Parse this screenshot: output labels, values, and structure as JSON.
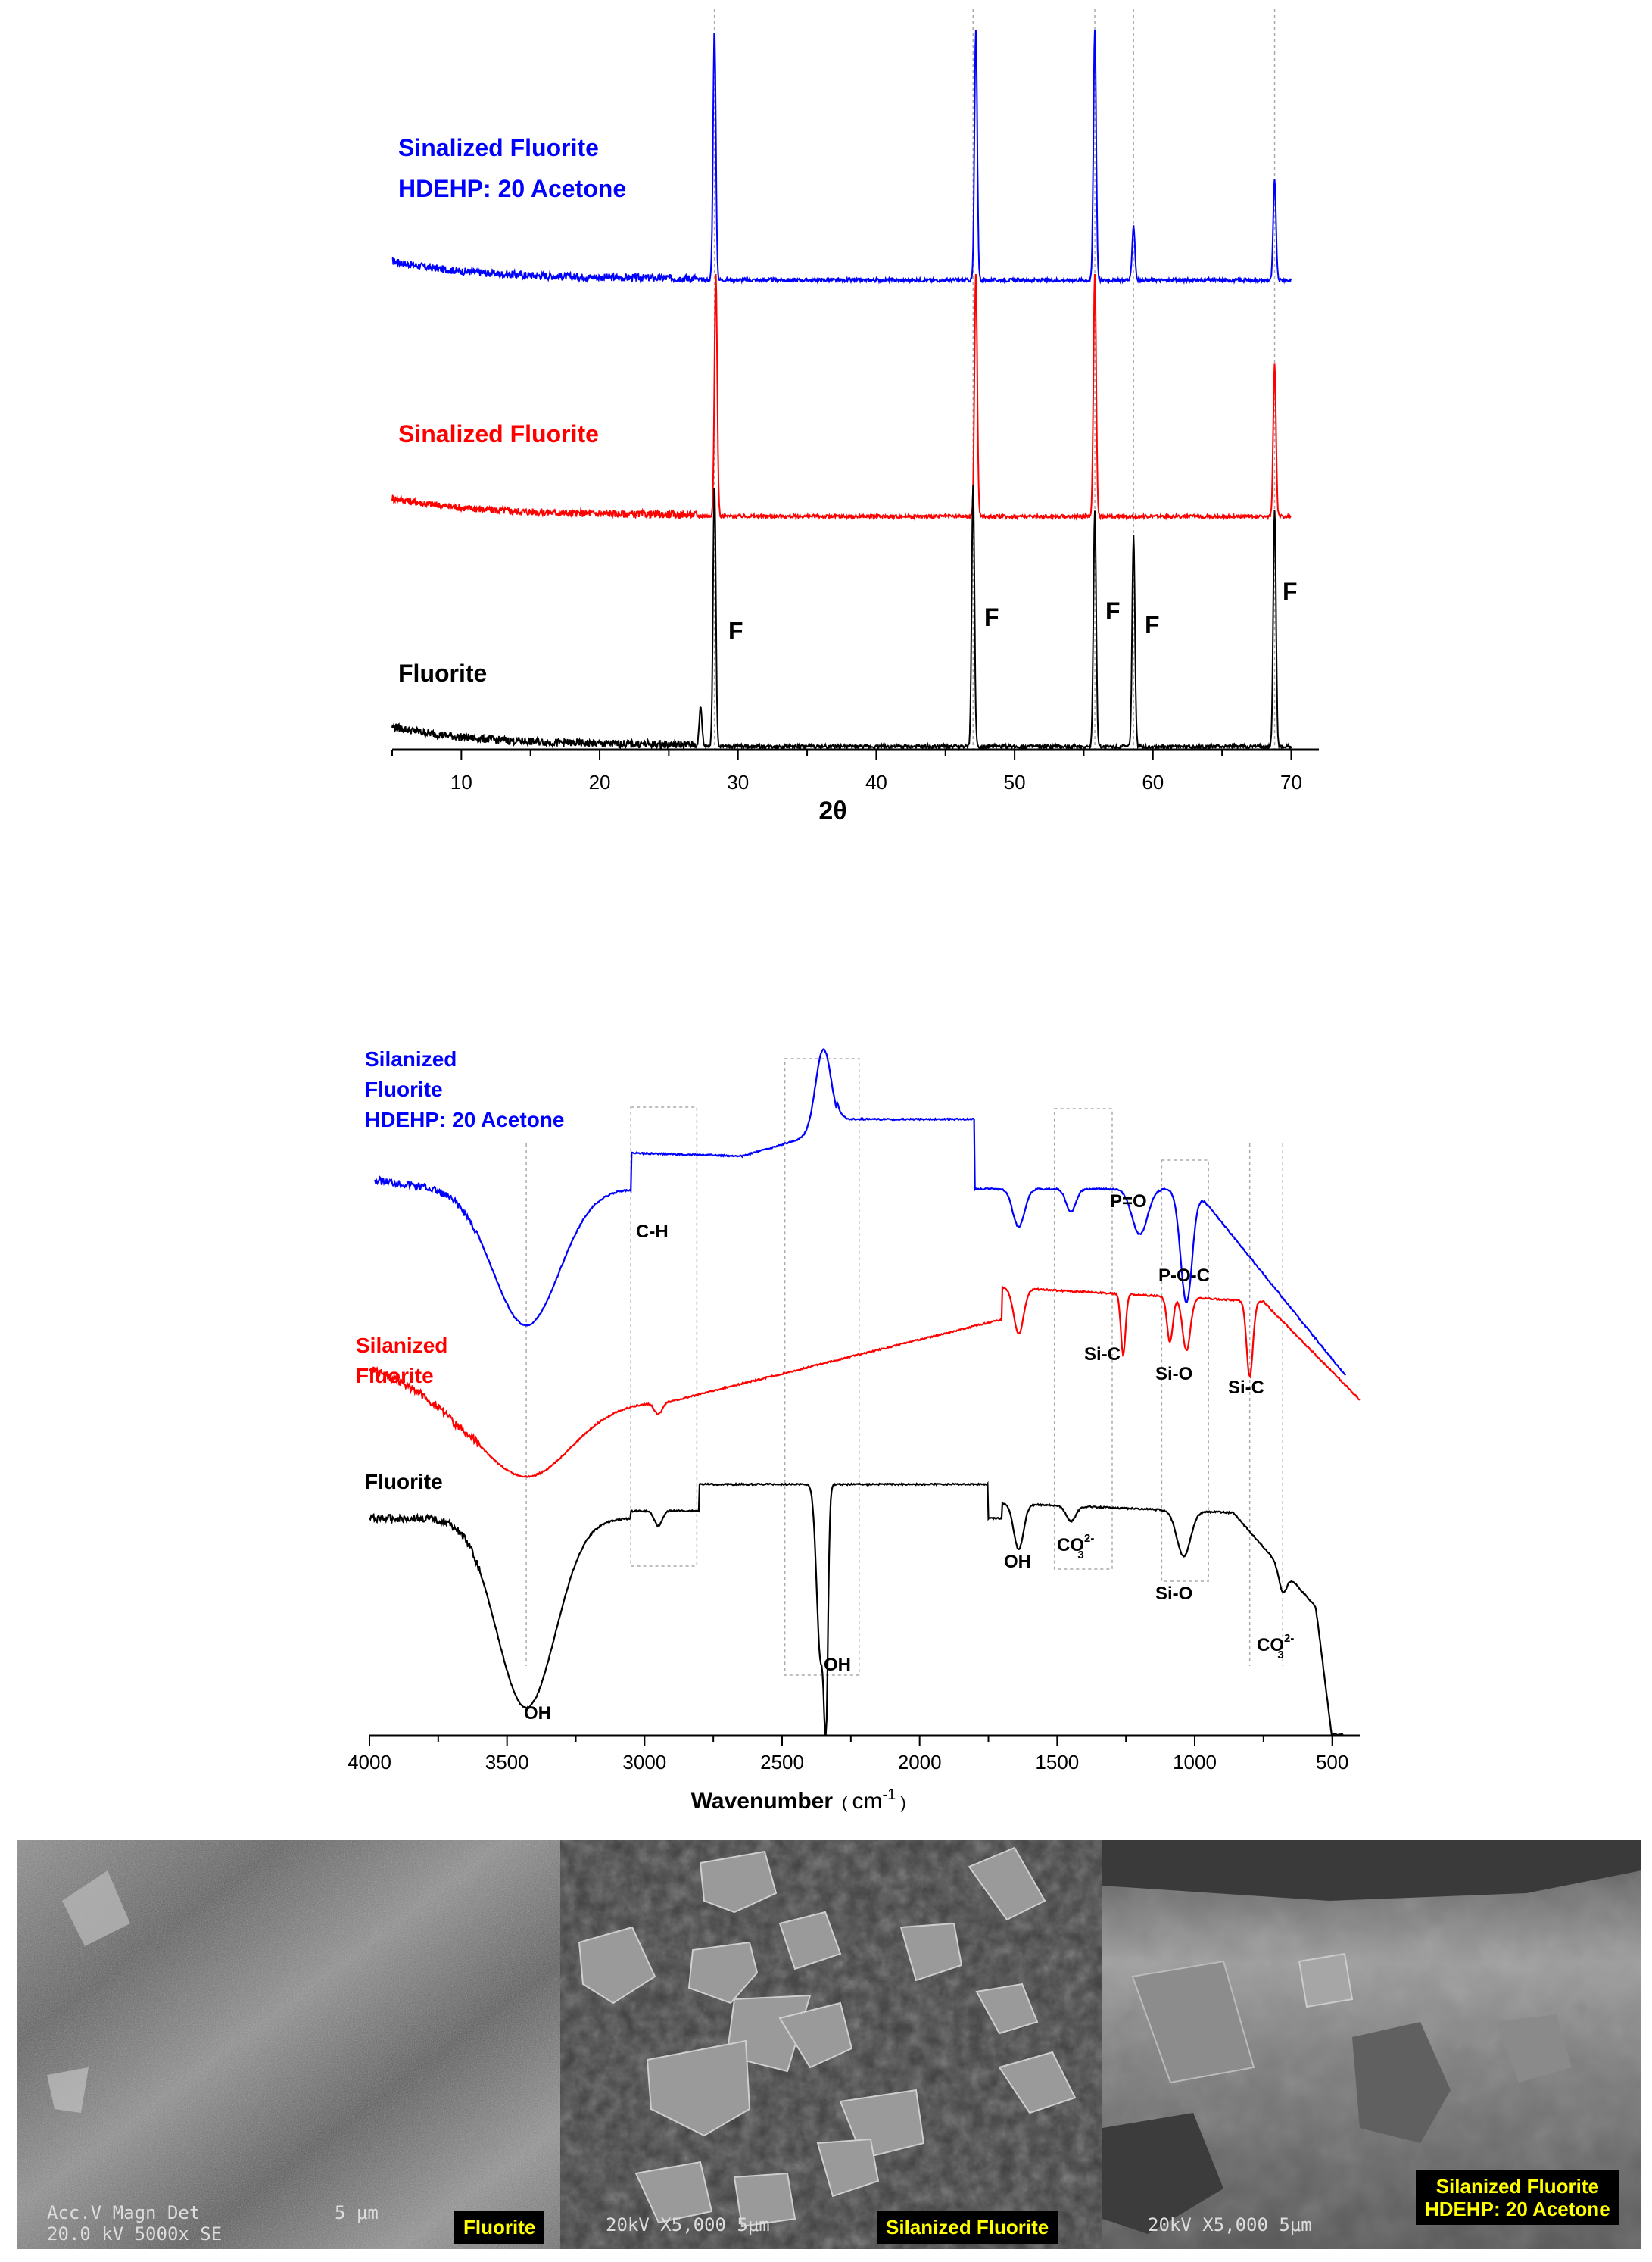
{
  "chart_data": [
    {
      "type": "line",
      "title": "",
      "xlabel": "2θ",
      "ylabel": "",
      "xlim": [
        5,
        72
      ],
      "xticks": [
        10,
        20,
        30,
        40,
        50,
        60,
        70
      ],
      "grid": false,
      "reference_lines_x": [
        28.3,
        47.0,
        55.8,
        58.6,
        68.8
      ],
      "series": [
        {
          "name": "Sinalized Fluorite\nHDEHP: 20 Acetone",
          "label_lines": [
            "Sinalized Fluorite",
            "HDEHP: 20 Acetone"
          ],
          "color": "#0000ff",
          "peaks": [
            {
              "x": 28.3,
              "h": 1.0
            },
            {
              "x": 47.2,
              "h": 1.0
            },
            {
              "x": 55.8,
              "h": 1.0
            },
            {
              "x": 58.6,
              "h": 0.22
            },
            {
              "x": 68.8,
              "h": 0.4
            }
          ]
        },
        {
          "name": "Sinalized Fluorite",
          "label_lines": [
            "Sinalized Fluorite"
          ],
          "color": "#ff0000",
          "peaks": [
            {
              "x": 28.4,
              "h": 1.0
            },
            {
              "x": 47.2,
              "h": 1.0
            },
            {
              "x": 55.8,
              "h": 1.0
            },
            {
              "x": 68.8,
              "h": 0.62
            }
          ]
        },
        {
          "name": "Fluorite",
          "label_lines": [
            "Fluorite"
          ],
          "color": "#000000",
          "peaks": [
            {
              "x": 27.3,
              "h": 0.15
            },
            {
              "x": 28.3,
              "h": 1.0
            },
            {
              "x": 47.0,
              "h": 1.0
            },
            {
              "x": 55.8,
              "h": 0.9
            },
            {
              "x": 58.6,
              "h": 0.8
            },
            {
              "x": 68.8,
              "h": 0.9
            }
          ]
        }
      ],
      "annotations": [
        "F",
        "F",
        "F",
        "F",
        "F"
      ]
    },
    {
      "type": "line",
      "title": "",
      "xlabel": "Wavenumber",
      "xlabel_unit": "cm",
      "xlabel_unit_exp": "-1",
      "ylabel": "",
      "xlim": [
        4000,
        400
      ],
      "xticks": [
        4000,
        3500,
        3000,
        2500,
        2000,
        1500,
        1000,
        500
      ],
      "grid": false,
      "series": [
        {
          "name": "Silanized\nFluorite\nHDEHP: 20 Acetone",
          "label_lines": [
            "Silanized",
            "Fluorite",
            "HDEHP: 20 Acetone"
          ],
          "color": "#0000ff"
        },
        {
          "name": "Silanized\nFluorite",
          "label_lines": [
            "Silanized",
            "Fluorite"
          ],
          "color": "#ff0000"
        },
        {
          "name": "Fluorite",
          "label_lines": [
            "Fluorite"
          ],
          "color": "#000000"
        }
      ],
      "band_labels": [
        "C-H",
        "P=O",
        "P-O-C",
        "Si-C",
        "Si-O",
        "Si-C",
        "OH",
        "OH",
        "OH",
        "CO",
        "Si-O",
        "CO"
      ],
      "co3_sub": "3",
      "co3_sup": "2-"
    }
  ],
  "sem_panels": [
    {
      "caption": "Fluorite",
      "micro_line1": "Acc.V  Magn    Det",
      "micro_line2": "20.0 kV  5000x   SE",
      "micro_scale": "5 μm"
    },
    {
      "caption": "Silanized Fluorite",
      "micro_line1": "20kV    X5,000    5μm"
    },
    {
      "caption_lines": [
        "Silanized Fluorite",
        "HDEHP: 20 Acetone"
      ],
      "micro_line1": "20kV    X5,000    5μm"
    }
  ]
}
